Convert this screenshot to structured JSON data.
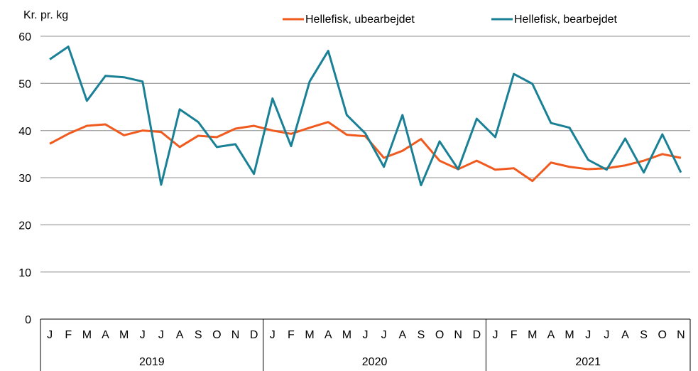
{
  "chart_data": {
    "type": "line",
    "y_axis_label": "Kr. pr. kg",
    "category_groups": [
      {
        "label": "2019",
        "months": [
          "J",
          "F",
          "M",
          "A",
          "M",
          "J",
          "J",
          "A",
          "S",
          "O",
          "N",
          "D"
        ]
      },
      {
        "label": "2020",
        "months": [
          "J",
          "F",
          "M",
          "A",
          "M",
          "J",
          "J",
          "A",
          "S",
          "O",
          "N",
          "D"
        ]
      },
      {
        "label": "2021",
        "months": [
          "J",
          "F",
          "M",
          "A",
          "M",
          "J",
          "J",
          "A",
          "S",
          "O",
          "N"
        ]
      }
    ],
    "series": [
      {
        "name": "Hellefisk, ubearbejdet",
        "color": "#f05a1e",
        "values": [
          37.2,
          39.3,
          41.0,
          41.3,
          39.0,
          40.0,
          39.7,
          36.5,
          38.9,
          38.6,
          40.4,
          41.0,
          40.0,
          39.3,
          40.6,
          41.8,
          39.1,
          38.8,
          34.2,
          35.7,
          38.2,
          33.6,
          31.8,
          33.6,
          31.7,
          32.0,
          29.3,
          33.2,
          32.3,
          31.8,
          32.0,
          32.6,
          33.6,
          35.0,
          34.2
        ]
      },
      {
        "name": "Hellefisk, bearbejdet",
        "color": "#1a8096",
        "values": [
          55.1,
          57.8,
          46.3,
          51.6,
          51.3,
          50.4,
          28.5,
          44.5,
          41.8,
          36.5,
          37.1,
          30.8,
          46.8,
          36.7,
          50.4,
          56.9,
          43.3,
          39.4,
          32.3,
          43.3,
          28.4,
          37.7,
          31.8,
          42.5,
          38.6,
          52.0,
          49.9,
          41.6,
          40.6,
          33.8,
          31.7,
          38.3,
          31.1,
          39.2,
          31.1
        ]
      }
    ],
    "ylim": [
      0,
      60
    ],
    "yticks": [
      0,
      10,
      20,
      30,
      40,
      50,
      60
    ],
    "grid": true,
    "legend": "top"
  }
}
